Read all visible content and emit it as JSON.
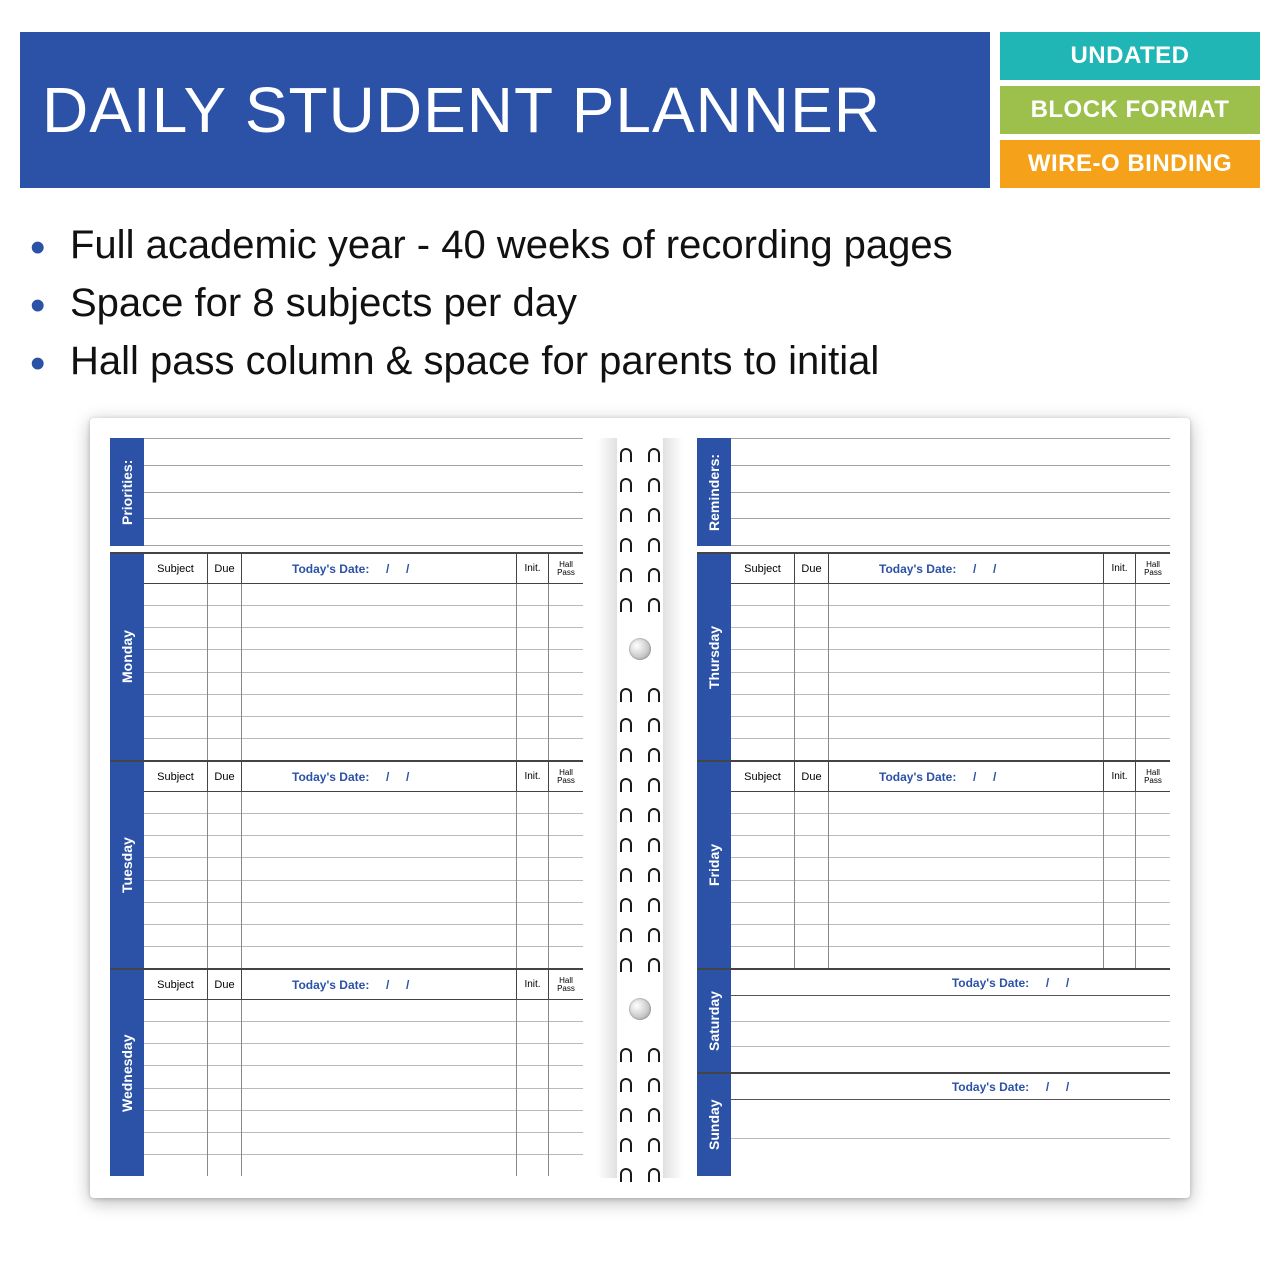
{
  "header": {
    "title": "DAILY STUDENT PLANNER",
    "badges": [
      {
        "label": "UNDATED",
        "bg": "#1fb6b5"
      },
      {
        "label": "BLOCK FORMAT",
        "bg": "#9cc04b"
      },
      {
        "label": "WIRE-O BINDING",
        "bg": "#f5a11a"
      }
    ]
  },
  "bullets": [
    "Full academic year - 40 weeks of recording pages",
    "Space for 8 subjects per day",
    "Hall pass column & space for parents to initial"
  ],
  "planner": {
    "accent_color": "#2b52a6",
    "rule_color": "#b5bbc0",
    "left_page": {
      "top_label": "Priorities:",
      "top_lines": 4,
      "days": [
        {
          "label": "Monday"
        },
        {
          "label": "Tuesday"
        },
        {
          "label": "Wednesday"
        }
      ]
    },
    "right_page": {
      "top_label": "Reminders:",
      "top_lines": 4,
      "days": [
        {
          "label": "Thursday"
        },
        {
          "label": "Friday"
        }
      ],
      "weekends": [
        {
          "label": "Saturday"
        },
        {
          "label": "Sunday"
        }
      ]
    },
    "day_columns": {
      "subject": "Subject",
      "due": "Due",
      "date_label": "Today's Date:",
      "date_sep": "/     /",
      "init": "Init.",
      "hall": "Hall\nPass",
      "rows_per_day": 8
    },
    "weekend_date_label": "Today's Date:     /     /",
    "weekend_lines": 3,
    "sunday_lines": 2
  }
}
